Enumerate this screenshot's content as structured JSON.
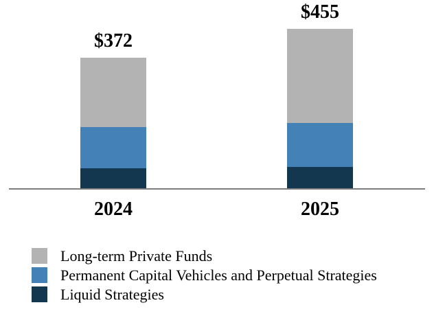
{
  "chart_data": {
    "type": "bar",
    "stacked": true,
    "title": "",
    "xlabel": "",
    "ylabel": "",
    "grid": false,
    "legend_position": "bottom-left",
    "axis_color": "#7d7d7d",
    "categories": [
      "2024",
      "2025"
    ],
    "totals": [
      372,
      455
    ],
    "total_labels": [
      "$372",
      "$455"
    ],
    "series": [
      {
        "name": "Long-term Private Funds",
        "color": "#b3b3b3",
        "values": [
          198,
          269
        ]
      },
      {
        "name": "Permanent Capital Vehicles and Perpetual Strategies",
        "color": "#4381b6",
        "values": [
          117,
          125
        ]
      },
      {
        "name": "Liquid Strategies",
        "color": "#143750",
        "values": [
          57,
          61
        ]
      }
    ]
  }
}
